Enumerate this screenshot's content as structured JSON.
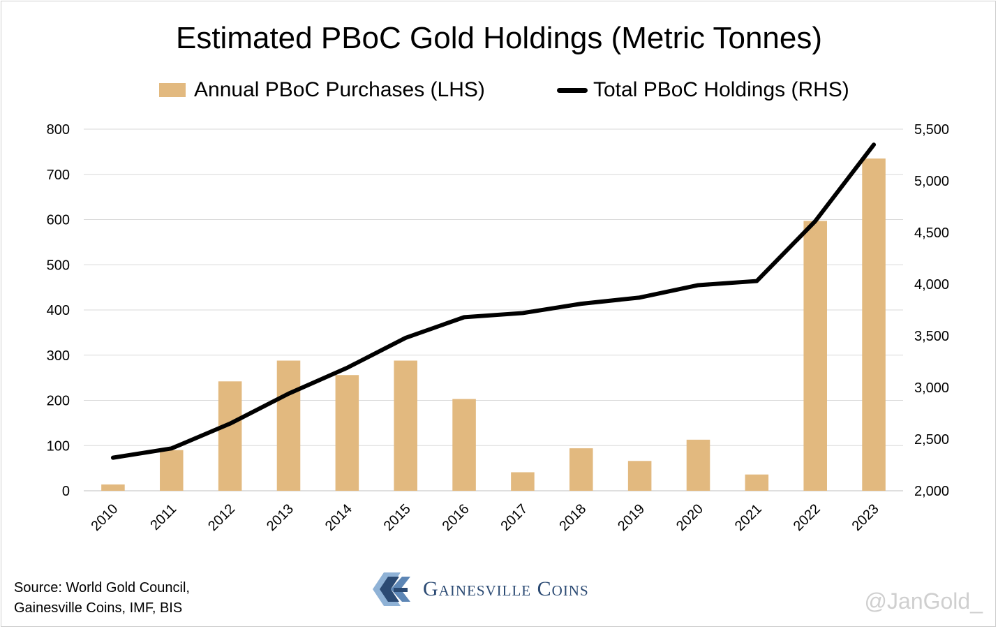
{
  "colors": {
    "bar": "#e2b97f",
    "line": "#000000",
    "grid": "#d9d9d9",
    "brand": "#2b4a73",
    "watermark": "#cfcfcf"
  },
  "brand": {
    "name": "Gainesville Coins",
    "logo_icon": "gainesville-coins-logo"
  },
  "source": {
    "line1": "Source: World Gold Council,",
    "line2": "Gainesville Coins, IMF, BIS"
  },
  "watermark": "@JanGold_",
  "chart_data": {
    "type": "bar",
    "title": "Estimated PBoC Gold Holdings (Metric Tonnes)",
    "categories": [
      "2010",
      "2011",
      "2012",
      "2013",
      "2014",
      "2015",
      "2016",
      "2017",
      "2018",
      "2019",
      "2020",
      "2021",
      "2022",
      "2023"
    ],
    "series": [
      {
        "name": "Annual PBoC Purchases (LHS)",
        "type": "bar",
        "axis": "left",
        "values": [
          14,
          90,
          242,
          288,
          256,
          288,
          203,
          41,
          94,
          66,
          113,
          36,
          597,
          735
        ]
      },
      {
        "name": "Total PBoC Holdings (RHS)",
        "type": "line",
        "axis": "right",
        "values": [
          2320,
          2410,
          2650,
          2940,
          3190,
          3480,
          3680,
          3720,
          3810,
          3870,
          3990,
          4030,
          4610,
          5350
        ]
      }
    ],
    "y_left": {
      "min": 0,
      "max": 800,
      "ticks": [
        "0",
        "100",
        "200",
        "300",
        "400",
        "500",
        "600",
        "700",
        "800"
      ]
    },
    "y_right": {
      "min": 2000,
      "max": 5500,
      "ticks": [
        "2,000",
        "2,500",
        "3,000",
        "3,500",
        "4,000",
        "4,500",
        "5,000",
        "5,500"
      ]
    },
    "xlabel": "",
    "ylabel": "",
    "grid": true,
    "legend": "top-center"
  }
}
